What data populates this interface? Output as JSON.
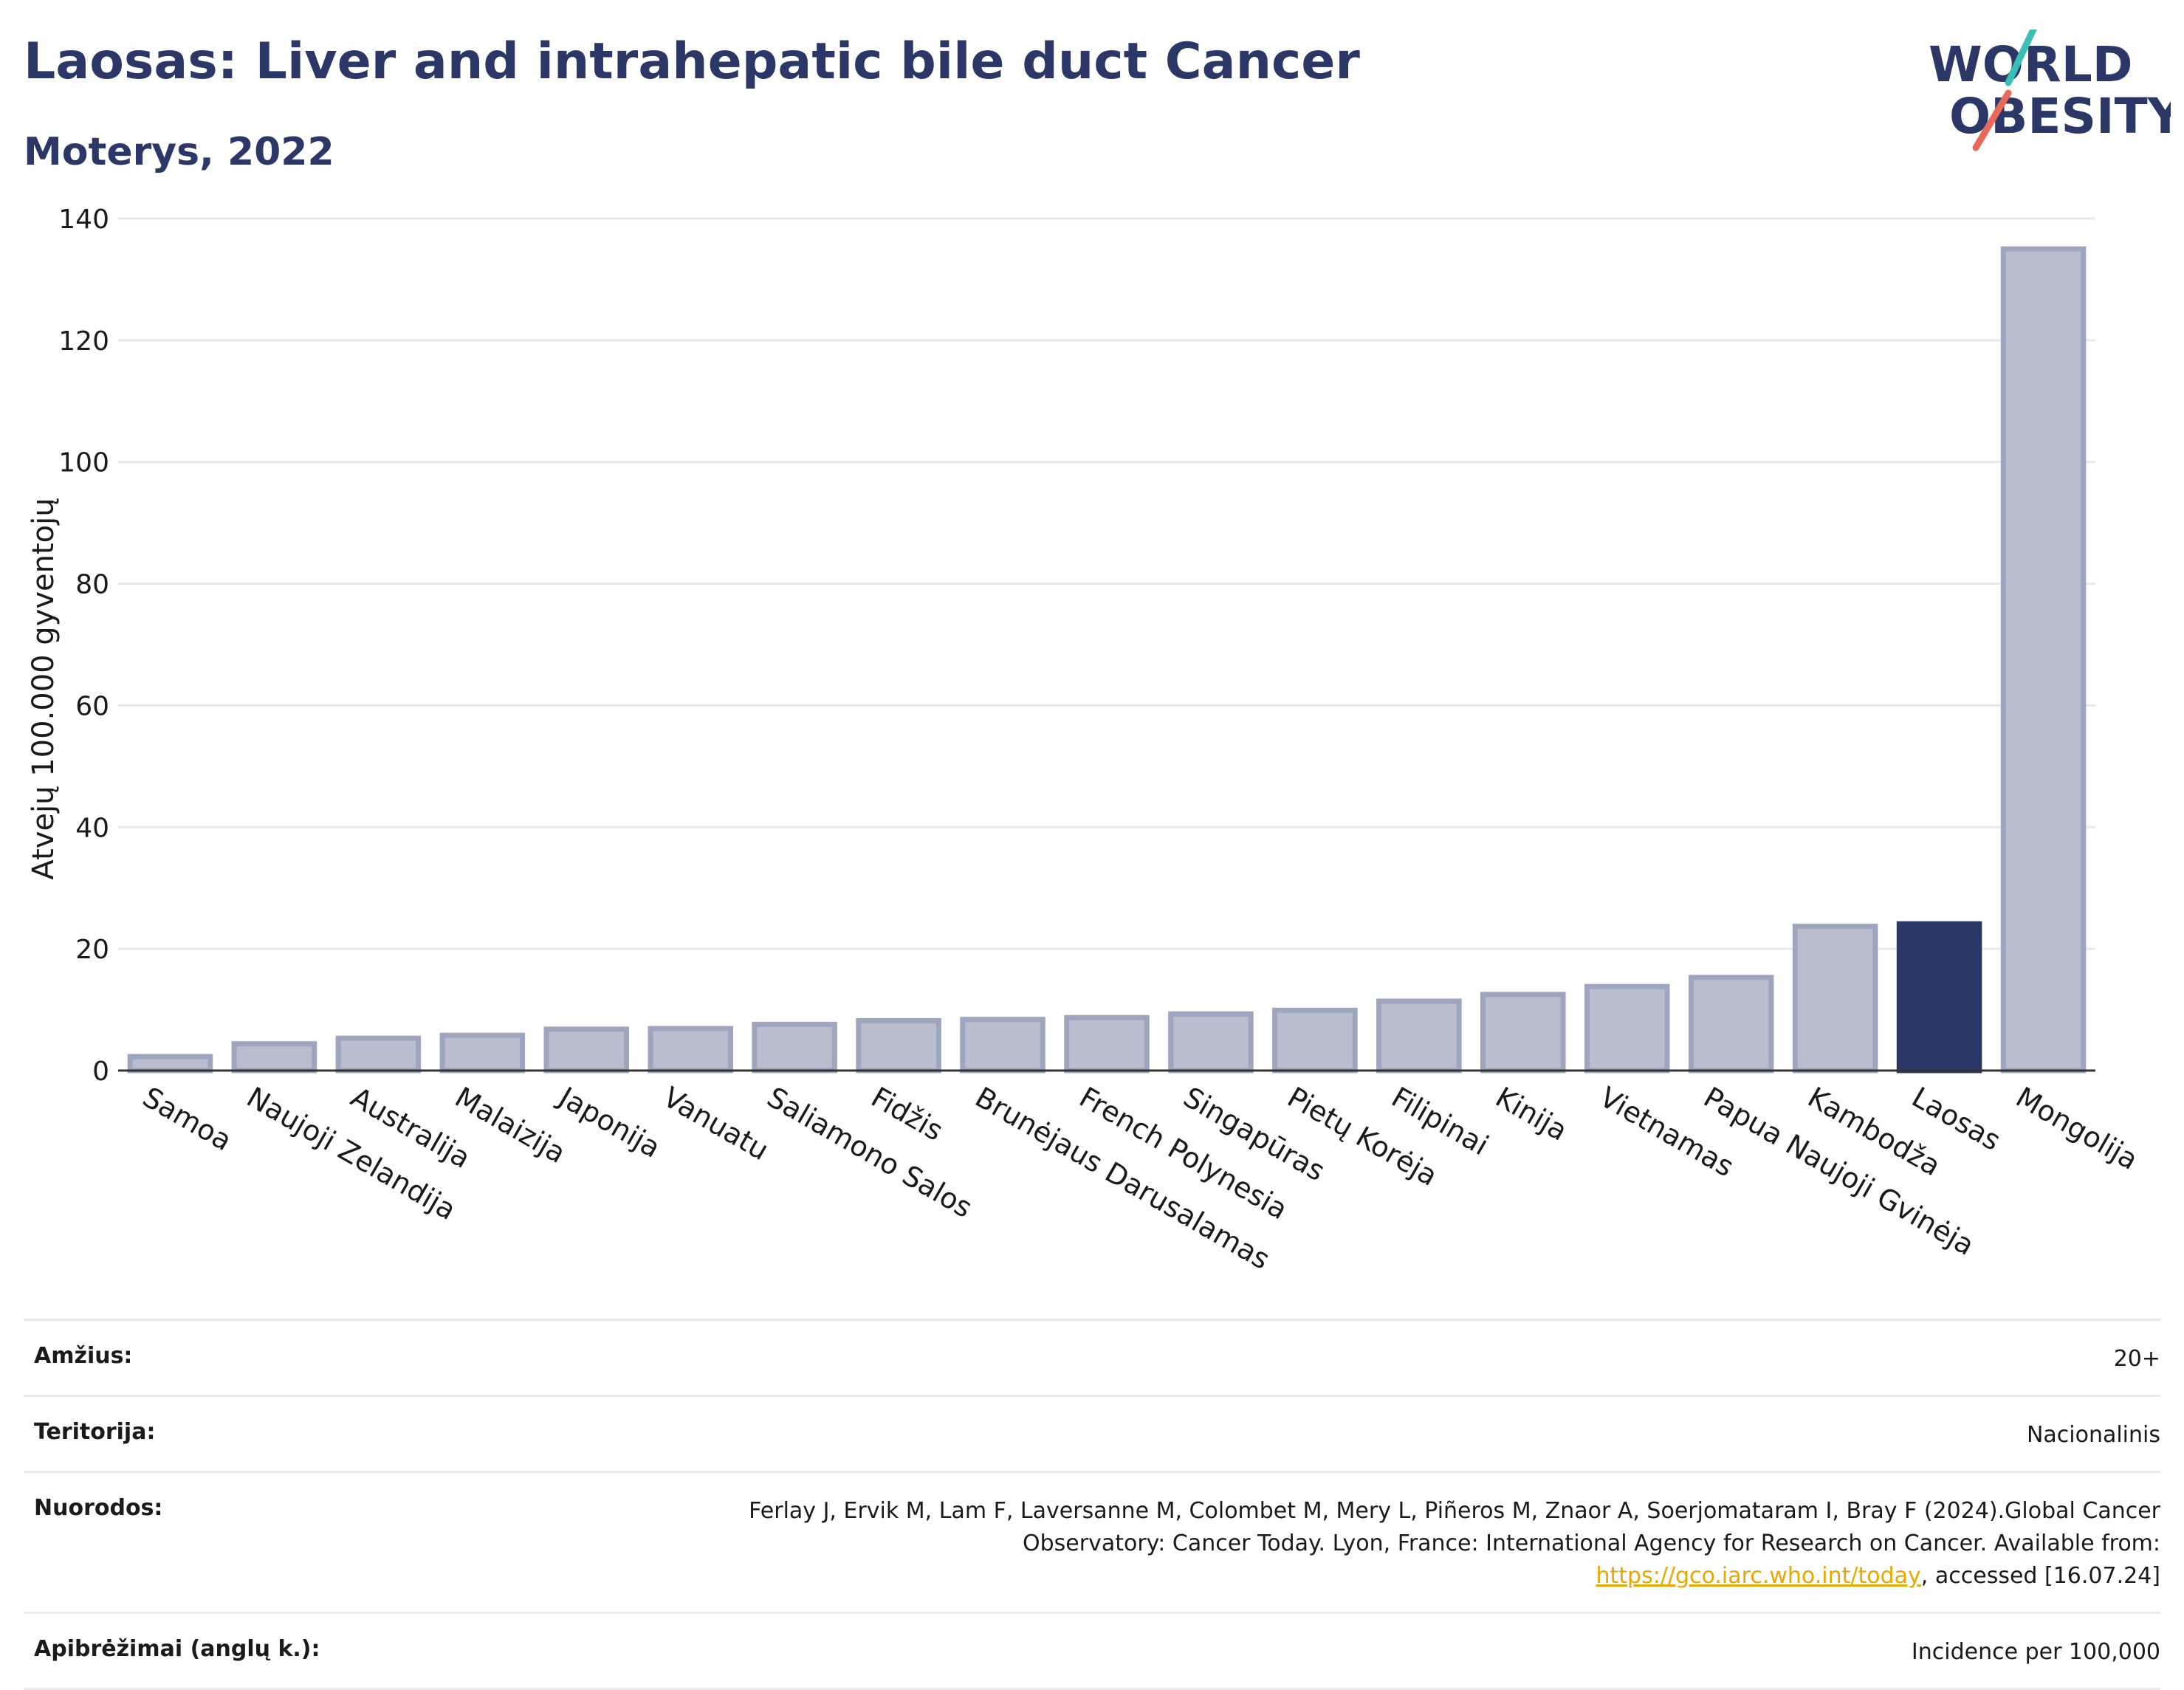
{
  "header": {
    "title": "Laosas: Liver and intrahepatic bile duct Cancer",
    "subtitle": "Moterys, 2022"
  },
  "logo": {
    "line1": "WORLD",
    "line2": "OBESITY",
    "colors": {
      "text": "#2b3767",
      "slash_top": "#3bbfb4",
      "slash_bottom": "#e8685a"
    }
  },
  "chart_data": {
    "type": "bar",
    "ylabel": "Atvejų 100.000 gyventojų",
    "ylim": [
      0,
      140
    ],
    "yticks": [
      0,
      20,
      40,
      60,
      80,
      100,
      120,
      140
    ],
    "grid": true,
    "categories": [
      "Samoa",
      "Naujoji Zelandija",
      "Australija",
      "Malaizija",
      "Japonija",
      "Vanuatu",
      "Saliamono Salos",
      "Fidžis",
      "Brunėjaus Darusalamas",
      "French Polynesia",
      "Singapūras",
      "Pietų Korėja",
      "Filipinai",
      "Kinija",
      "Vietnamas",
      "Papua Naujoji Gvinėja",
      "Kambodža",
      "Laosas",
      "Mongolija"
    ],
    "values": [
      2.3,
      4.4,
      5.3,
      5.8,
      6.8,
      6.9,
      7.6,
      8.2,
      8.4,
      8.7,
      9.3,
      9.9,
      11.4,
      12.5,
      13.8,
      15.3,
      23.7,
      24.1,
      135.0
    ],
    "highlight": "Laosas",
    "colors": {
      "bar": "#b9bece",
      "bar_border": "#9ea5bf",
      "highlight": "#2b3767"
    }
  },
  "info": {
    "rows": [
      {
        "label": "Amžius:",
        "value": "20+"
      },
      {
        "label": "Teritorija:",
        "value": "Nacionalinis"
      },
      {
        "label": "Nuorodos:",
        "value_pre": "Ferlay J, Ervik M, Lam F, Laversanne M, Colombet M, Mery L, Piñeros M, Znaor A, Soerjomataram I, Bray F (2024).Global Cancer Observatory: Cancer Today. Lyon, France: International Agency for Research on Cancer. Available from: ",
        "link": "https://gco.iarc.who.int/today",
        "value_post": ", accessed [16.07.24]"
      },
      {
        "label": "Apibrėžimai (anglų k.):",
        "value": "Incidence per 100,000"
      }
    ],
    "link_color": "#e8a800"
  }
}
